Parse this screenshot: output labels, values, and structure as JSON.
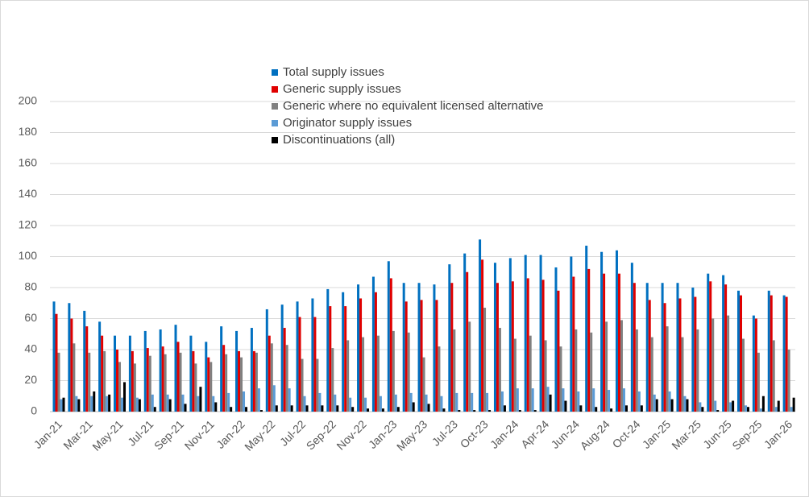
{
  "chart_data": {
    "type": "bar",
    "categories": [
      "Jan-21",
      null,
      "Mar-21",
      null,
      "May-21",
      null,
      "Jul-21",
      null,
      "Sep-21",
      null,
      "Nov-21",
      null,
      "Jan-22",
      null,
      "May-22",
      null,
      "Jul-22",
      null,
      "Sep-22",
      null,
      "Nov-22",
      null,
      "Jan-23",
      null,
      "May-23",
      null,
      "Jul-23",
      null,
      "Oct-23",
      null,
      "Jan-24",
      null,
      "Apr-24",
      null,
      "Jun-24",
      null,
      "Aug-24",
      null,
      "Oct-24",
      null,
      "Jan-25",
      null,
      "Mar-25",
      null,
      "Jun-25",
      null,
      "Sep-25",
      null,
      "Jan-26"
    ],
    "series": [
      {
        "name": "Total supply issues",
        "color": "#0070c0",
        "values": [
          71,
          70,
          65,
          58,
          49,
          49,
          52,
          53,
          56,
          49,
          45,
          55,
          52,
          54,
          66,
          69,
          71,
          73,
          79,
          77,
          82,
          87,
          97,
          83,
          83,
          82,
          95,
          102,
          111,
          96,
          99,
          101,
          101,
          93,
          100,
          107,
          103,
          104,
          96,
          83,
          83,
          83,
          80,
          89,
          88,
          78,
          62,
          78,
          75
        ]
      },
      {
        "name": "Generic supply issues",
        "color": "#e00000",
        "values": [
          63,
          60,
          55,
          49,
          40,
          39,
          41,
          42,
          45,
          39,
          35,
          43,
          39,
          39,
          49,
          54,
          61,
          61,
          68,
          68,
          73,
          77,
          86,
          71,
          72,
          72,
          83,
          90,
          98,
          83,
          84,
          86,
          85,
          78,
          87,
          92,
          89,
          89,
          83,
          72,
          70,
          73,
          74,
          84,
          82,
          75,
          60,
          75,
          74
        ]
      },
      {
        "name": "Generic where no equivalent licensed alternative",
        "color": "#808080",
        "values": [
          38,
          44,
          38,
          39,
          32,
          31,
          36,
          37,
          38,
          31,
          32,
          37,
          35,
          38,
          44,
          43,
          34,
          34,
          41,
          46,
          48,
          49,
          52,
          51,
          35,
          42,
          53,
          58,
          67,
          54,
          47,
          49,
          46,
          42,
          53,
          51,
          58,
          59,
          53,
          48,
          55,
          48,
          53,
          60,
          62,
          47,
          38,
          46,
          40
        ]
      },
      {
        "name": "Originator supply issues",
        "color": "#5b9bd5",
        "values": [
          8,
          10,
          10,
          10,
          9,
          9,
          11,
          11,
          11,
          10,
          10,
          12,
          13,
          15,
          17,
          15,
          10,
          12,
          11,
          9,
          9,
          10,
          11,
          12,
          11,
          10,
          12,
          12,
          12,
          13,
          15,
          15,
          16,
          15,
          13,
          15,
          14,
          15,
          13,
          11,
          13,
          10,
          6,
          7,
          6,
          4,
          2,
          3,
          3
        ]
      },
      {
        "name": "Discontinuations (all)",
        "color": "#000000",
        "values": [
          9,
          8,
          13,
          11,
          19,
          8,
          3,
          8,
          5,
          16,
          6,
          3,
          3,
          1,
          4,
          4,
          4,
          4,
          4,
          3,
          2,
          2,
          3,
          6,
          5,
          2,
          1,
          1,
          1,
          4,
          1,
          1,
          11,
          7,
          4,
          3,
          2,
          4,
          4,
          8,
          8,
          8,
          3,
          1,
          7,
          3,
          10,
          7,
          9
        ]
      }
    ],
    "ylim": [
      0,
      200
    ],
    "yticks": [
      0,
      20,
      40,
      60,
      80,
      100,
      120,
      140,
      160,
      180,
      200
    ],
    "grid": true
  }
}
